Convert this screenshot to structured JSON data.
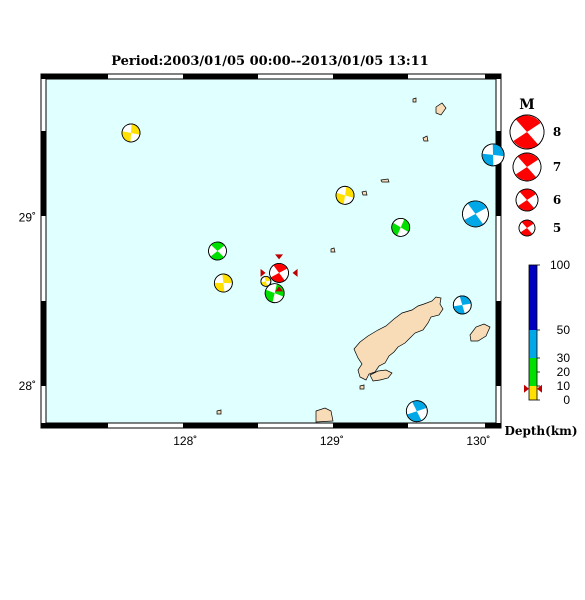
{
  "title": "Period:2003/01/05 00:00--2013/01/05 13:11",
  "axes": {
    "x_ticks": [
      {
        "value": 128,
        "label": "128˚"
      },
      {
        "value": 129,
        "label": "129˚"
      },
      {
        "value": 130,
        "label": "130˚"
      }
    ],
    "y_ticks": [
      {
        "value": 29,
        "label": "29˚"
      },
      {
        "value": 28,
        "label": "28˚"
      }
    ],
    "lon_range": [
      127.05,
      130.12
    ],
    "lat_range": [
      27.78,
      29.82
    ]
  },
  "colors": {
    "sea": "#e0ffff",
    "land": "#f8dcb8",
    "depth_0_10": "#ffe000",
    "depth_10_20": "#00e000",
    "depth_30_50": "#00a8e8",
    "depth_50_100": "#0000c0",
    "magnitude_legend": "#ff0000",
    "epicenter": "#ff0000"
  },
  "magnitude_legend": {
    "title": "M",
    "items": [
      {
        "label": "8",
        "value": 8
      },
      {
        "label": "7",
        "value": 7
      },
      {
        "label": "6",
        "value": 6
      },
      {
        "label": "5",
        "value": 5
      }
    ]
  },
  "depth_legend": {
    "title": "Depth(km)",
    "ticks": [
      {
        "label": "100",
        "value": 100
      },
      {
        "label": "50",
        "value": 50
      },
      {
        "label": "30",
        "value": 30
      },
      {
        "label": "20",
        "value": 20
      },
      {
        "label": "10",
        "value": 10
      },
      {
        "label": "0",
        "value": 0
      }
    ],
    "marker_depth": 8
  },
  "mechanisms": [
    {
      "lon": 127.63,
      "lat": 29.5,
      "depth": 8,
      "mag": 4.8,
      "rot": 20
    },
    {
      "lon": 127.82,
      "lat": 29.0,
      "depth": 8,
      "mag": 0,
      "rot": 0,
      "hidden": true
    },
    {
      "lon": 128.22,
      "lat": 28.8,
      "depth": 15,
      "mag": 4.8,
      "rot": -30
    },
    {
      "lon": 128.26,
      "lat": 28.61,
      "depth": 8,
      "mag": 4.8,
      "rot": 10
    },
    {
      "lon": 128.55,
      "lat": 28.62,
      "depth": 8,
      "mag": 4.0,
      "rot": 0
    },
    {
      "lon": 128.61,
      "lat": 28.55,
      "depth": 15,
      "mag": 4.9,
      "rot": 30
    },
    {
      "lon": 128.64,
      "lat": 28.67,
      "depth": 8,
      "mag": 4.9,
      "rot": -20,
      "main": true
    },
    {
      "lon": 129.09,
      "lat": 29.13,
      "depth": 8,
      "mag": 4.8,
      "rot": 25
    },
    {
      "lon": 129.47,
      "lat": 28.94,
      "depth": 15,
      "mag": 4.8,
      "rot": 40
    },
    {
      "lon": 129.58,
      "lat": 27.85,
      "depth": 40,
      "mag": 5.1,
      "rot": -10
    },
    {
      "lon": 129.89,
      "lat": 28.48,
      "depth": 40,
      "mag": 4.8,
      "rot": 0
    },
    {
      "lon": 129.98,
      "lat": 29.02,
      "depth": 40,
      "mag": 5.6,
      "rot": -20
    },
    {
      "lon": 130.1,
      "lat": 29.37,
      "depth": 40,
      "mag": 5.2,
      "rot": 15
    }
  ]
}
